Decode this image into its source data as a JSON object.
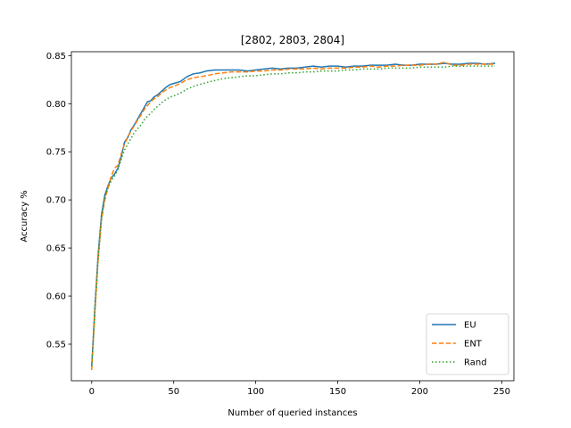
{
  "chart_data": {
    "type": "line",
    "title": "[2802, 2803, 2804]",
    "xlabel": "Number of queried instances",
    "ylabel": "Accuracy %",
    "xlim": [
      -12.4,
      257.4
    ],
    "ylim": [
      0.512,
      0.854
    ],
    "xticks": [
      0,
      50,
      100,
      150,
      200,
      250
    ],
    "xtick_labels": [
      "0",
      "50",
      "100",
      "150",
      "200",
      "250"
    ],
    "yticks": [
      0.55,
      0.6,
      0.65,
      0.7,
      0.75,
      0.8,
      0.85
    ],
    "ytick_labels": [
      "0.55",
      "0.60",
      "0.65",
      "0.70",
      "0.75",
      "0.80",
      "0.85"
    ],
    "grid": false,
    "legend_position": "lower-right",
    "series": [
      {
        "name": "EU",
        "color": "#1f77b4",
        "style": "solid",
        "x": [
          0,
          2,
          4,
          6,
          8,
          10,
          12,
          14,
          16,
          18,
          20,
          22,
          24,
          26,
          28,
          30,
          32,
          34,
          36,
          38,
          40,
          42,
          44,
          46,
          48,
          50,
          54,
          58,
          62,
          66,
          70,
          75,
          80,
          85,
          90,
          95,
          100,
          105,
          110,
          115,
          120,
          125,
          130,
          135,
          140,
          145,
          150,
          155,
          160,
          165,
          170,
          175,
          180,
          185,
          190,
          195,
          200,
          205,
          210,
          215,
          220,
          225,
          230,
          235,
          240,
          246
        ],
        "y": [
          0.527,
          0.59,
          0.645,
          0.685,
          0.705,
          0.715,
          0.723,
          0.727,
          0.733,
          0.745,
          0.76,
          0.765,
          0.773,
          0.778,
          0.784,
          0.79,
          0.796,
          0.802,
          0.803,
          0.807,
          0.809,
          0.812,
          0.815,
          0.818,
          0.82,
          0.821,
          0.823,
          0.828,
          0.831,
          0.832,
          0.834,
          0.835,
          0.835,
          0.835,
          0.835,
          0.834,
          0.835,
          0.836,
          0.837,
          0.836,
          0.837,
          0.837,
          0.838,
          0.839,
          0.838,
          0.839,
          0.839,
          0.838,
          0.839,
          0.839,
          0.84,
          0.84,
          0.84,
          0.841,
          0.84,
          0.84,
          0.841,
          0.841,
          0.841,
          0.842,
          0.841,
          0.841,
          0.842,
          0.842,
          0.841,
          0.842
        ]
      },
      {
        "name": "ENT",
        "color": "#ff7f0e",
        "style": "dashed",
        "x": [
          0,
          2,
          4,
          6,
          8,
          10,
          12,
          14,
          16,
          18,
          20,
          22,
          24,
          26,
          28,
          30,
          32,
          34,
          36,
          38,
          40,
          42,
          44,
          46,
          48,
          50,
          54,
          58,
          62,
          66,
          70,
          75,
          80,
          85,
          90,
          95,
          100,
          105,
          110,
          115,
          120,
          125,
          130,
          135,
          140,
          145,
          150,
          155,
          160,
          165,
          170,
          175,
          180,
          185,
          190,
          195,
          200,
          205,
          210,
          215,
          220,
          225,
          230,
          235,
          240,
          246
        ],
        "y": [
          0.523,
          0.585,
          0.64,
          0.68,
          0.7,
          0.713,
          0.725,
          0.733,
          0.736,
          0.748,
          0.758,
          0.765,
          0.772,
          0.777,
          0.783,
          0.788,
          0.794,
          0.798,
          0.802,
          0.805,
          0.807,
          0.81,
          0.813,
          0.815,
          0.817,
          0.818,
          0.821,
          0.825,
          0.827,
          0.828,
          0.829,
          0.831,
          0.832,
          0.833,
          0.833,
          0.833,
          0.834,
          0.834,
          0.835,
          0.835,
          0.836,
          0.836,
          0.836,
          0.837,
          0.836,
          0.837,
          0.837,
          0.837,
          0.838,
          0.838,
          0.839,
          0.838,
          0.839,
          0.839,
          0.84,
          0.84,
          0.84,
          0.841,
          0.841,
          0.843,
          0.84,
          0.84,
          0.841,
          0.841,
          0.841,
          0.841
        ]
      },
      {
        "name": "Rand",
        "color": "#2ca02c",
        "style": "dotted",
        "x": [
          0,
          2,
          4,
          6,
          8,
          10,
          12,
          14,
          16,
          18,
          20,
          22,
          24,
          26,
          28,
          30,
          32,
          34,
          36,
          38,
          40,
          42,
          44,
          46,
          48,
          50,
          54,
          58,
          62,
          66,
          70,
          75,
          80,
          85,
          90,
          95,
          100,
          105,
          110,
          115,
          120,
          125,
          130,
          135,
          140,
          145,
          150,
          155,
          160,
          165,
          170,
          175,
          180,
          185,
          190,
          195,
          200,
          205,
          210,
          215,
          220,
          225,
          230,
          235,
          240,
          246
        ],
        "y": [
          0.527,
          0.585,
          0.64,
          0.68,
          0.703,
          0.713,
          0.72,
          0.725,
          0.732,
          0.742,
          0.752,
          0.758,
          0.764,
          0.77,
          0.774,
          0.778,
          0.783,
          0.787,
          0.79,
          0.794,
          0.797,
          0.8,
          0.803,
          0.805,
          0.807,
          0.808,
          0.811,
          0.815,
          0.818,
          0.82,
          0.822,
          0.824,
          0.826,
          0.827,
          0.828,
          0.829,
          0.829,
          0.83,
          0.831,
          0.831,
          0.832,
          0.832,
          0.833,
          0.833,
          0.834,
          0.834,
          0.834,
          0.835,
          0.835,
          0.836,
          0.836,
          0.836,
          0.837,
          0.837,
          0.837,
          0.837,
          0.838,
          0.838,
          0.838,
          0.838,
          0.839,
          0.839,
          0.839,
          0.839,
          0.839,
          0.839
        ]
      }
    ]
  }
}
